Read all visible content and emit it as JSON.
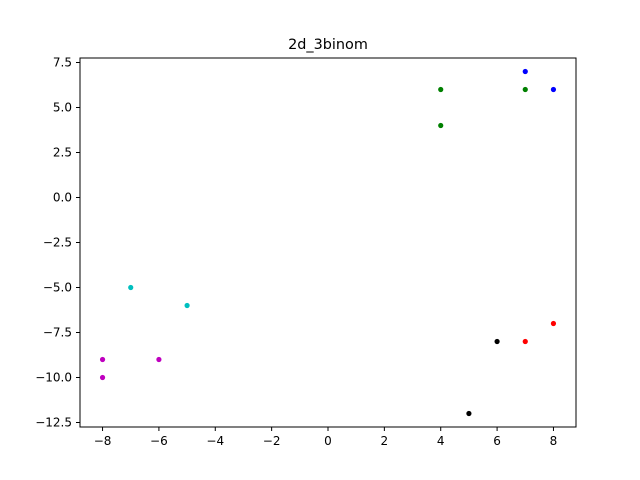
{
  "chart_data": {
    "type": "scatter",
    "title": "2d_3binom",
    "xlabel": "",
    "ylabel": "",
    "xlim": [
      -8.8,
      8.8
    ],
    "ylim": [
      -12.75,
      7.75
    ],
    "grid": false,
    "x_ticks": [
      -8,
      -6,
      -4,
      -2,
      0,
      2,
      4,
      6,
      8
    ],
    "x_tick_labels": [
      "−8",
      "−6",
      "−4",
      "−2",
      "0",
      "2",
      "4",
      "6",
      "8"
    ],
    "y_ticks": [
      7.5,
      5.0,
      2.5,
      0.0,
      -2.5,
      -5.0,
      -7.5,
      -10.0,
      -12.5
    ],
    "y_tick_labels": [
      "7.5",
      "5.0",
      "2.5",
      "0.0",
      "−2.5",
      "−5.0",
      "−7.5",
      "−10.0",
      "−12.5"
    ],
    "series": [
      {
        "color": "#0000ff",
        "points": [
          [
            7,
            7
          ],
          [
            8,
            6
          ]
        ]
      },
      {
        "color": "#008000",
        "points": [
          [
            4,
            6
          ],
          [
            4,
            4
          ],
          [
            7,
            6
          ]
        ]
      },
      {
        "color": "#00bfbf",
        "points": [
          [
            -7,
            -5
          ],
          [
            -5,
            -6
          ]
        ]
      },
      {
        "color": "#bf00bf",
        "points": [
          [
            -8,
            -9
          ],
          [
            -8,
            -10
          ],
          [
            -6,
            -9
          ]
        ]
      },
      {
        "color": "#ff0000",
        "points": [
          [
            8,
            -7
          ],
          [
            7,
            -8
          ]
        ]
      },
      {
        "color": "#000000",
        "points": [
          [
            6,
            -8
          ],
          [
            5,
            -12
          ]
        ]
      }
    ]
  }
}
